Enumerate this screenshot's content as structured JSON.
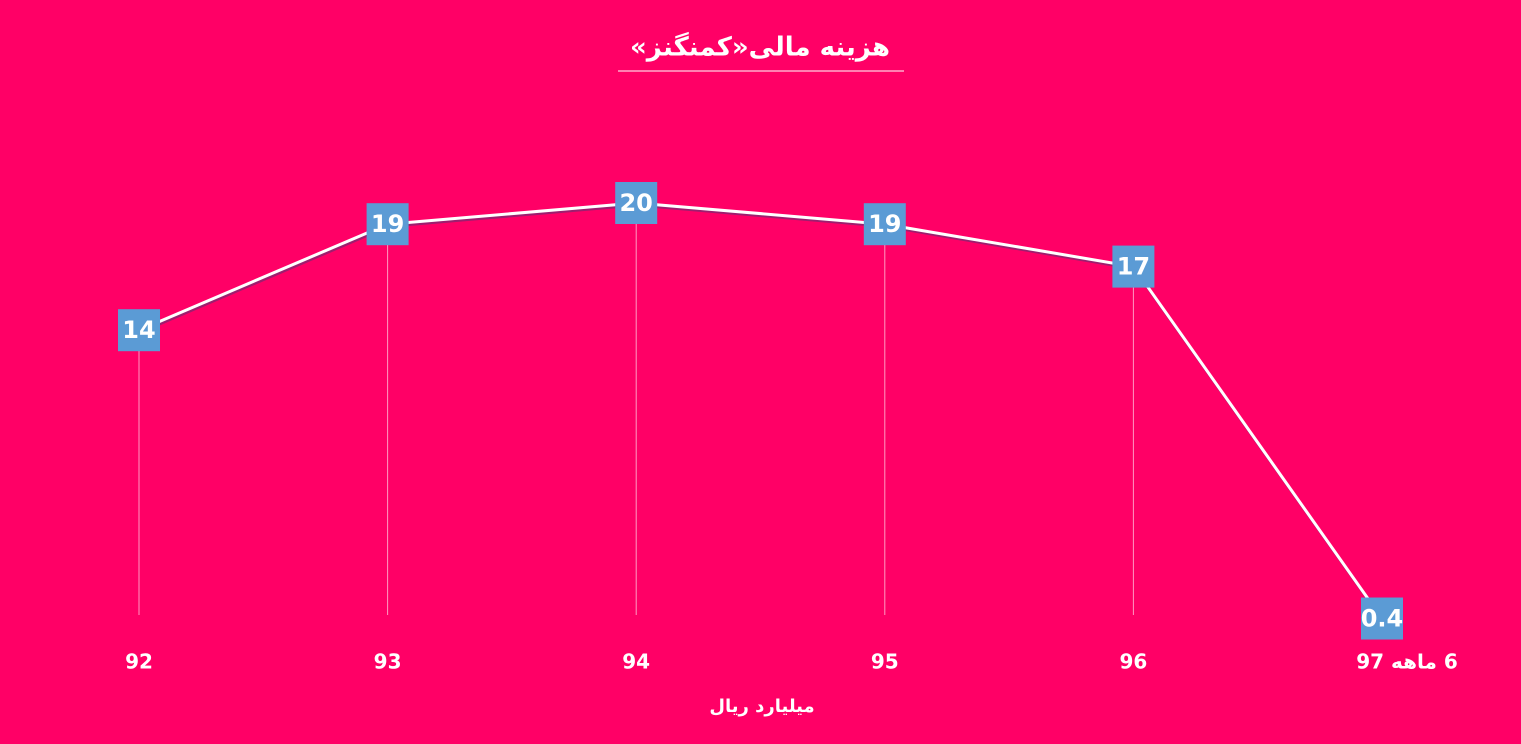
{
  "chart_data": {
    "type": "line",
    "title": "هزینه مالی«کمنگنز»",
    "x_axis_label": "میلیارد ریال",
    "categories": [
      "92",
      "93",
      "94",
      "95",
      "96",
      "6 ماهه 97"
    ],
    "values": [
      14,
      19,
      20,
      19,
      17,
      0.4
    ],
    "color": "#ffffff",
    "label_color": "#5b9bd5"
  }
}
